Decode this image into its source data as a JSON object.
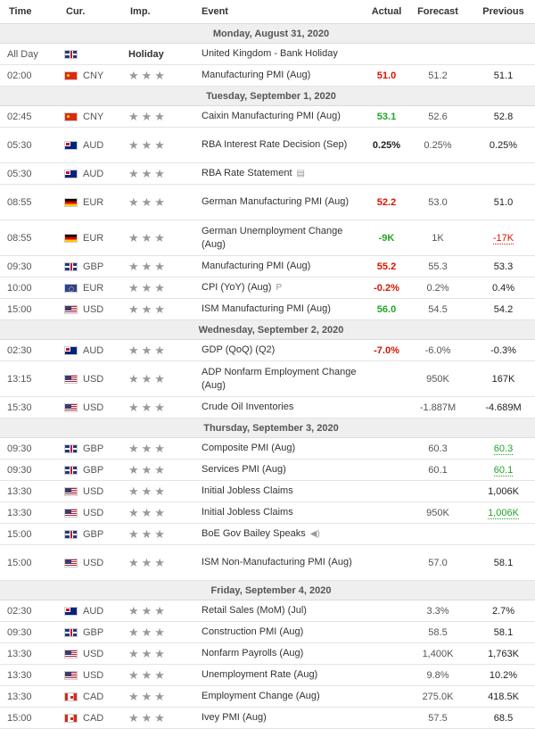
{
  "header": {
    "time": "Time",
    "cur": "Cur.",
    "imp": "Imp.",
    "event": "Event",
    "actual": "Actual",
    "forecast": "Forecast",
    "previous": "Previous"
  },
  "colors": {
    "negative": "#d91400",
    "positive": "#24a428",
    "day_bg": "#efefef"
  },
  "days": [
    {
      "label": "Monday, August 31, 2020",
      "events": [
        {
          "time": "All Day",
          "flag": "uk",
          "cur": "",
          "holiday": "Holiday",
          "event": "United Kingdom - Bank Holiday",
          "actual": "",
          "actual_color": "",
          "forecast": "",
          "previous": "",
          "prev_color": ""
        },
        {
          "time": "02:00",
          "flag": "cn",
          "cur": "CNY",
          "event": "Manufacturing PMI (Aug)",
          "actual": "51.0",
          "actual_color": "red",
          "forecast": "51.2",
          "previous": "51.1",
          "prev_color": ""
        }
      ]
    },
    {
      "label": "Tuesday, September 1, 2020",
      "events": [
        {
          "time": "02:45",
          "flag": "cn",
          "cur": "CNY",
          "event": "Caixin Manufacturing PMI (Aug)",
          "actual": "53.1",
          "actual_color": "green",
          "forecast": "52.6",
          "previous": "52.8",
          "prev_color": ""
        },
        {
          "time": "05:30",
          "flag": "au",
          "cur": "AUD",
          "event": "RBA Interest Rate Decision (Sep)",
          "tall": true,
          "actual": "0.25%",
          "actual_color": "black",
          "forecast": "0.25%",
          "previous": "0.25%",
          "prev_color": ""
        },
        {
          "time": "05:30",
          "flag": "au",
          "cur": "AUD",
          "event": "RBA Rate Statement",
          "icon": "document-icon",
          "actual": "",
          "actual_color": "",
          "forecast": "",
          "previous": "",
          "prev_color": ""
        },
        {
          "time": "08:55",
          "flag": "de",
          "cur": "EUR",
          "event": "German Manufacturing PMI (Aug)",
          "tall": true,
          "actual": "52.2",
          "actual_color": "red",
          "forecast": "53.0",
          "previous": "51.0",
          "prev_color": ""
        },
        {
          "time": "08:55",
          "flag": "de",
          "cur": "EUR",
          "event": "German Unemployment Change (Aug)",
          "tall": true,
          "actual": "-9K",
          "actual_color": "green",
          "forecast": "1K",
          "previous": "-17K",
          "prev_color": "red"
        },
        {
          "time": "09:30",
          "flag": "uk",
          "cur": "GBP",
          "event": "Manufacturing PMI (Aug)",
          "actual": "55.2",
          "actual_color": "red",
          "forecast": "55.3",
          "previous": "53.3",
          "prev_color": ""
        },
        {
          "time": "10:00",
          "flag": "eu",
          "cur": "EUR",
          "event": "CPI (YoY) (Aug)",
          "icon": "preliminary-icon",
          "actual": "-0.2%",
          "actual_color": "red",
          "forecast": "0.2%",
          "previous": "0.4%",
          "prev_color": ""
        },
        {
          "time": "15:00",
          "flag": "us",
          "cur": "USD",
          "event": "ISM Manufacturing PMI (Aug)",
          "actual": "56.0",
          "actual_color": "green",
          "forecast": "54.5",
          "previous": "54.2",
          "prev_color": ""
        }
      ]
    },
    {
      "label": "Wednesday, September 2, 2020",
      "events": [
        {
          "time": "02:30",
          "flag": "au",
          "cur": "AUD",
          "event": "GDP (QoQ) (Q2)",
          "actual": "-7.0%",
          "actual_color": "red",
          "forecast": "-6.0%",
          "previous": "-0.3%",
          "prev_color": ""
        },
        {
          "time": "13:15",
          "flag": "us",
          "cur": "USD",
          "event": "ADP Nonfarm Employment Change (Aug)",
          "tall": true,
          "actual": "",
          "actual_color": "",
          "forecast": "950K",
          "previous": "167K",
          "prev_color": ""
        },
        {
          "time": "15:30",
          "flag": "us",
          "cur": "USD",
          "event": "Crude Oil Inventories",
          "actual": "",
          "actual_color": "",
          "forecast": "-1.887M",
          "previous": "-4.689M",
          "prev_color": ""
        }
      ]
    },
    {
      "label": "Thursday, September 3, 2020",
      "events": [
        {
          "time": "09:30",
          "flag": "uk",
          "cur": "GBP",
          "event": "Composite PMI (Aug)",
          "actual": "",
          "actual_color": "",
          "forecast": "60.3",
          "previous": "60.3",
          "prev_color": "green"
        },
        {
          "time": "09:30",
          "flag": "uk",
          "cur": "GBP",
          "event": "Services PMI (Aug)",
          "actual": "",
          "actual_color": "",
          "forecast": "60.1",
          "previous": "60.1",
          "prev_color": "green"
        },
        {
          "time": "13:30",
          "flag": "us",
          "cur": "USD",
          "event": "Initial Jobless Claims",
          "actual": "",
          "actual_color": "",
          "forecast": "",
          "previous": "1,006K",
          "prev_color": ""
        },
        {
          "time": "13:30",
          "flag": "us",
          "cur": "USD",
          "event": "Initial Jobless Claims",
          "actual": "",
          "actual_color": "",
          "forecast": "950K",
          "previous": "1,006K",
          "prev_color": "green"
        },
        {
          "time": "15:00",
          "flag": "uk",
          "cur": "GBP",
          "event": "BoE Gov Bailey Speaks",
          "icon": "speaker-icon",
          "actual": "",
          "actual_color": "",
          "forecast": "",
          "previous": "",
          "prev_color": ""
        },
        {
          "time": "15:00",
          "flag": "us",
          "cur": "USD",
          "event": "ISM Non-Manufacturing PMI (Aug)",
          "tall": true,
          "actual": "",
          "actual_color": "",
          "forecast": "57.0",
          "previous": "58.1",
          "prev_color": ""
        }
      ]
    },
    {
      "label": "Friday, September 4, 2020",
      "events": [
        {
          "time": "02:30",
          "flag": "au",
          "cur": "AUD",
          "event": "Retail Sales (MoM) (Jul)",
          "actual": "",
          "actual_color": "",
          "forecast": "3.3%",
          "previous": "2.7%",
          "prev_color": ""
        },
        {
          "time": "09:30",
          "flag": "uk",
          "cur": "GBP",
          "event": "Construction PMI (Aug)",
          "actual": "",
          "actual_color": "",
          "forecast": "58.5",
          "previous": "58.1",
          "prev_color": ""
        },
        {
          "time": "13:30",
          "flag": "us",
          "cur": "USD",
          "event": "Nonfarm Payrolls (Aug)",
          "actual": "",
          "actual_color": "",
          "forecast": "1,400K",
          "previous": "1,763K",
          "prev_color": ""
        },
        {
          "time": "13:30",
          "flag": "us",
          "cur": "USD",
          "event": "Unemployment Rate (Aug)",
          "actual": "",
          "actual_color": "",
          "forecast": "9.8%",
          "previous": "10.2%",
          "prev_color": ""
        },
        {
          "time": "13:30",
          "flag": "ca",
          "cur": "CAD",
          "event": "Employment Change (Aug)",
          "actual": "",
          "actual_color": "",
          "forecast": "275.0K",
          "previous": "418.5K",
          "prev_color": ""
        },
        {
          "time": "15:00",
          "flag": "ca",
          "cur": "CAD",
          "event": "Ivey PMI (Aug)",
          "actual": "",
          "actual_color": "",
          "forecast": "57.5",
          "previous": "68.5",
          "prev_color": ""
        }
      ]
    }
  ]
}
